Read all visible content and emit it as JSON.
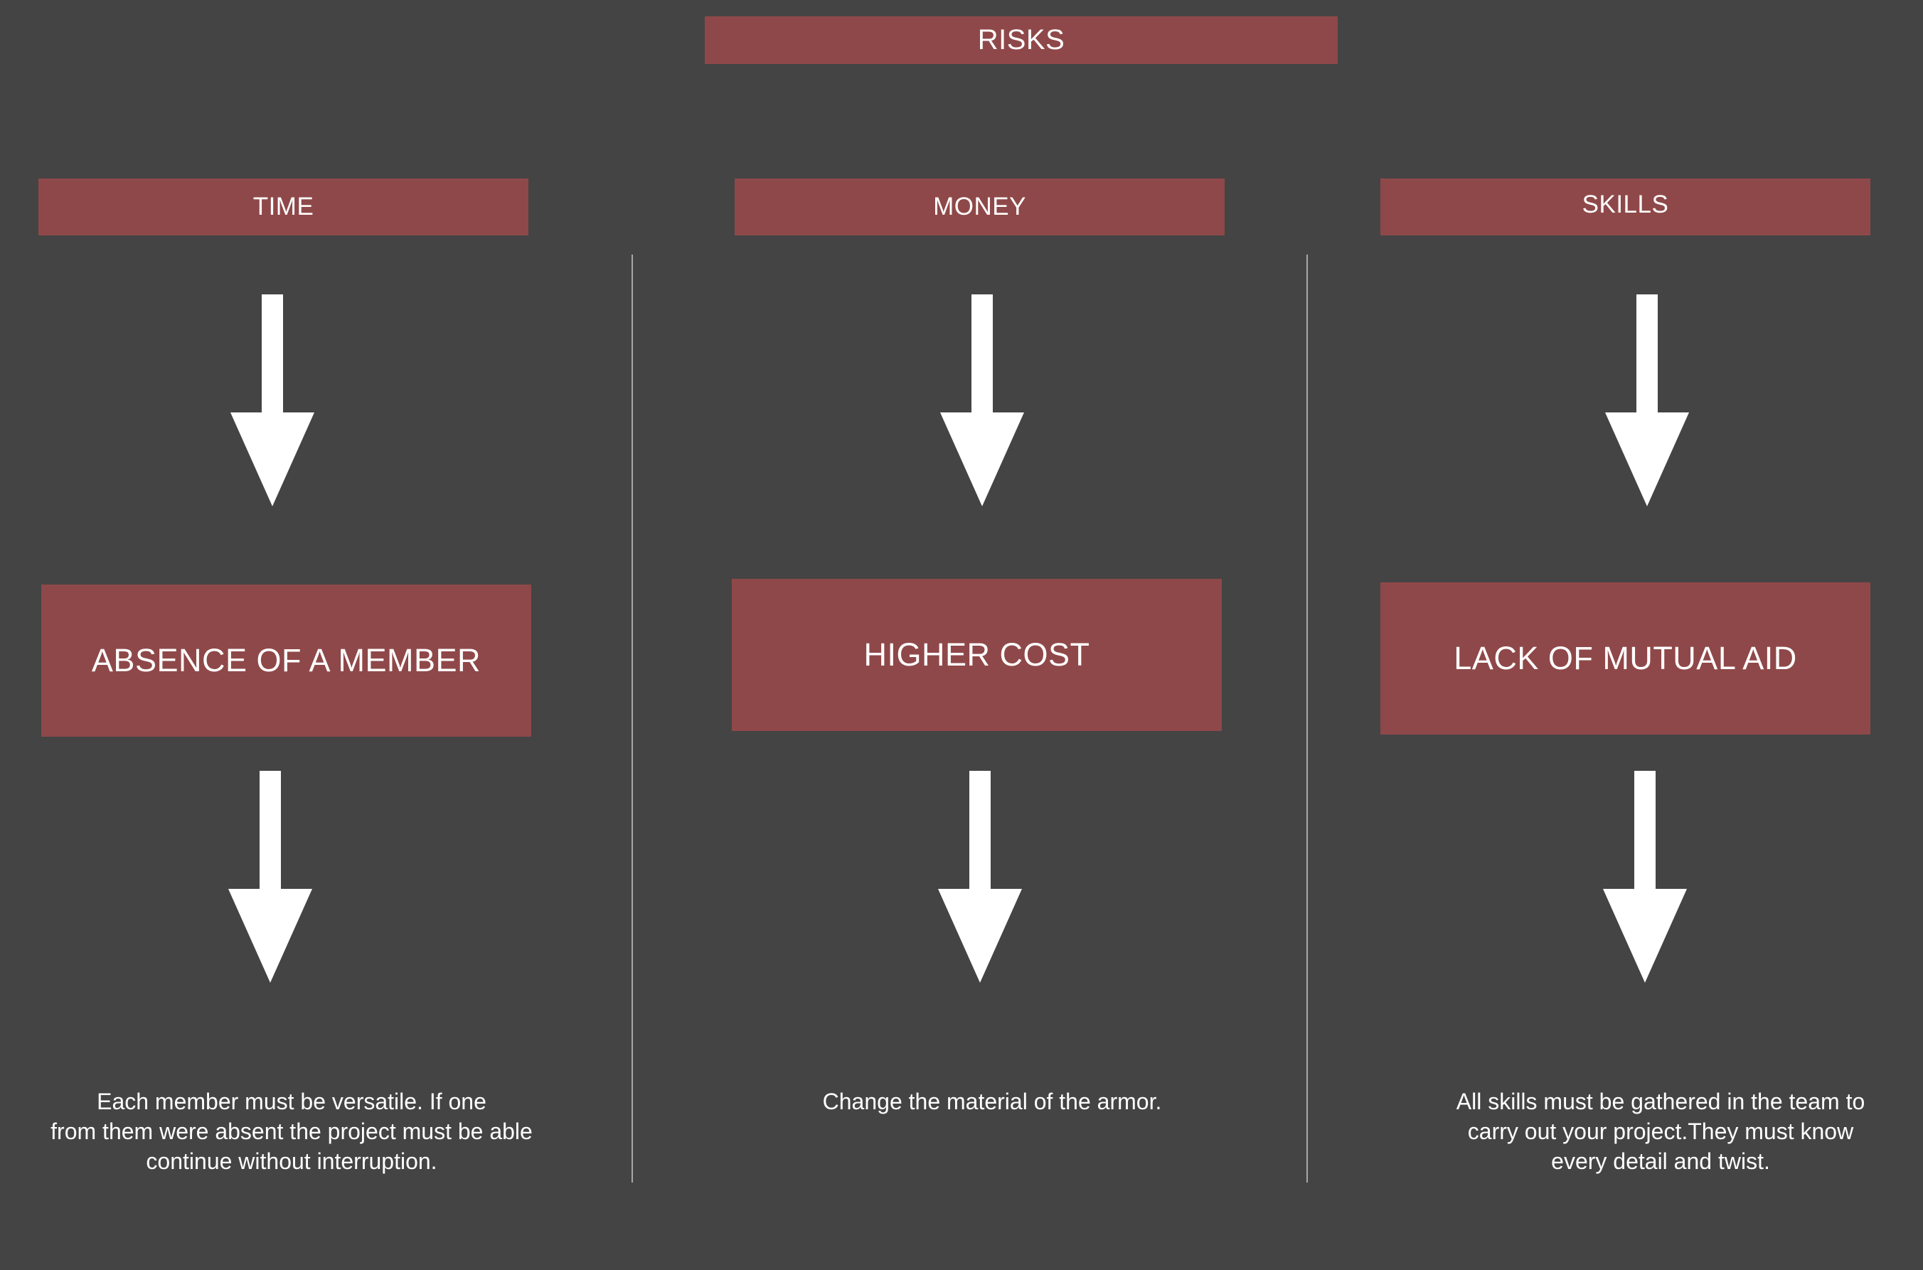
{
  "diagram": {
    "title": "RISKS",
    "colors": {
      "background": "#444444",
      "box": "#8f4849",
      "text": "#ffffff",
      "divider": "#a8a8a8"
    },
    "columns": [
      {
        "category": "TIME",
        "risk": "ABSENCE OF A MEMBER",
        "description_lines": [
          "Each member must be versatile. If one",
          "from them were absent the project must be able",
          "continue without interruption."
        ]
      },
      {
        "category": "MONEY",
        "risk": "HIGHER COST",
        "description_lines": [
          "Change the material of the armor."
        ]
      },
      {
        "category": "SKILLS",
        "risk": "LACK OF MUTUAL AID",
        "description_lines": [
          "All skills must be gathered in the team to",
          "carry out your project.They must know",
          "every detail and twist."
        ]
      }
    ],
    "arrow_icon": "down-arrow-icon"
  }
}
